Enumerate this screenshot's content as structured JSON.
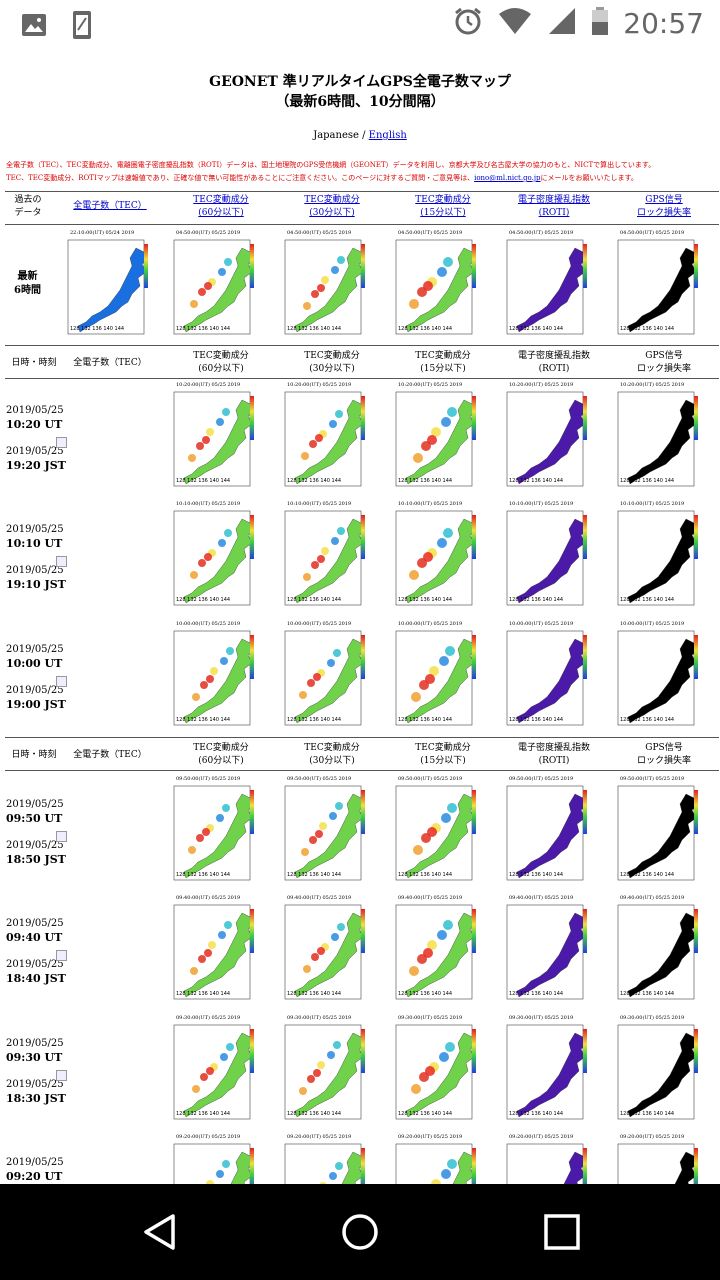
{
  "status": {
    "time": "20:57"
  },
  "title_line1": "GEONET 準リアルタイムGPS全電子数マップ",
  "title_line2": "（最新6時間、10分間隔）",
  "lang": {
    "japanese": "Japanese",
    "sep": " / ",
    "english": "English"
  },
  "notice_line1": "全電子数（TEC）、TEC変動成分、電離圏電子密度擾乱指数（ROTI）データは、国土地理院のGPS受信機網（GEONET）データを利用し、京都大学及び名古屋大学の協力のもと、NICTで算出しています。",
  "notice_line2a": "TEC、TEC変動成分、ROTIマップは速報値であり、正確な値で無い可能性があることにご注意ください。このページに対するご質問・ご意見等は、",
  "notice_email": "iono@ml.nict.go.jp",
  "notice_line2b": "にメールをお願いいたします。",
  "top_header": {
    "past_data_1": "過去の",
    "past_data_2": "データ",
    "tec": "全電子数（TEC）",
    "tec60_1": "TEC変動成分",
    "tec60_2": "(60分以下)",
    "tec30_1": "TEC変動成分",
    "tec30_2": "(30分以下)",
    "tec15_1": "TEC変動成分",
    "tec15_2": "(15分以下)",
    "roti_1": "電子密度擾乱指数",
    "roti_2": "(ROTI)",
    "gps_1": "GPS信号",
    "gps_2": "ロック損失率"
  },
  "latest_1": "最新",
  "latest_2": "6時間",
  "latest_maps": [
    "22:10:00(UT) 05/24 2019",
    "04:50:00(UT) 05/25 2019",
    "04:50:00(UT) 05/25 2019",
    "04:50:00(UT) 05/25 2019",
    "04:50:00(UT) 05/25 2019",
    "04:50:00(UT) 05/25 2019"
  ],
  "section_header": {
    "datetime": "日時・時刻",
    "tec": "全電子数（TEC）",
    "tec60_1": "TEC変動成分",
    "tec60_2": "(60分以下)",
    "tec30_1": "TEC変動成分",
    "tec30_2": "(30分以下)",
    "tec15_1": "TEC変動成分",
    "tec15_2": "(15分以下)",
    "roti_1": "電子密度擾乱指数",
    "roti_2": "(ROTI)",
    "gps_1": "GPS信号",
    "gps_2": "ロック損失率"
  },
  "rows": [
    {
      "date": "2019/05/25",
      "ut": "10:20 UT",
      "date2": "2019/05/25",
      "jst": "19:20 JST",
      "stamp": "10:20:00(UT) 05/25 2019"
    },
    {
      "date": "2019/05/25",
      "ut": "10:10 UT",
      "date2": "2019/05/25",
      "jst": "19:10 JST",
      "stamp": "10:10:00(UT) 05/25 2019"
    },
    {
      "date": "2019/05/25",
      "ut": "10:00 UT",
      "date2": "2019/05/25",
      "jst": "19:00 JST",
      "stamp": "10:00:00(UT) 05/25 2019"
    },
    {
      "date": "2019/05/25",
      "ut": "09:50 UT",
      "date2": "2019/05/25",
      "jst": "18:50 JST",
      "stamp": "09:50:00(UT) 05/25 2019"
    },
    {
      "date": "2019/05/25",
      "ut": "09:40 UT",
      "date2": "2019/05/25",
      "jst": "18:40 JST",
      "stamp": "09:40:00(UT) 05/25 2019"
    },
    {
      "date": "2019/05/25",
      "ut": "09:30 UT",
      "date2": "2019/05/25",
      "jst": "18:30 JST",
      "stamp": "09:30:00(UT) 05/25 2019"
    },
    {
      "date": "2019/05/25",
      "ut": "09:20 UT",
      "date2": "",
      "jst": "",
      "stamp": "09:20:00(UT) 05/25 2019"
    }
  ],
  "colors": {
    "link": "#0000cc",
    "notice": "#dd0000",
    "tec_blue": "#1a6fe0",
    "roti_purple": "#4b1aa8"
  }
}
